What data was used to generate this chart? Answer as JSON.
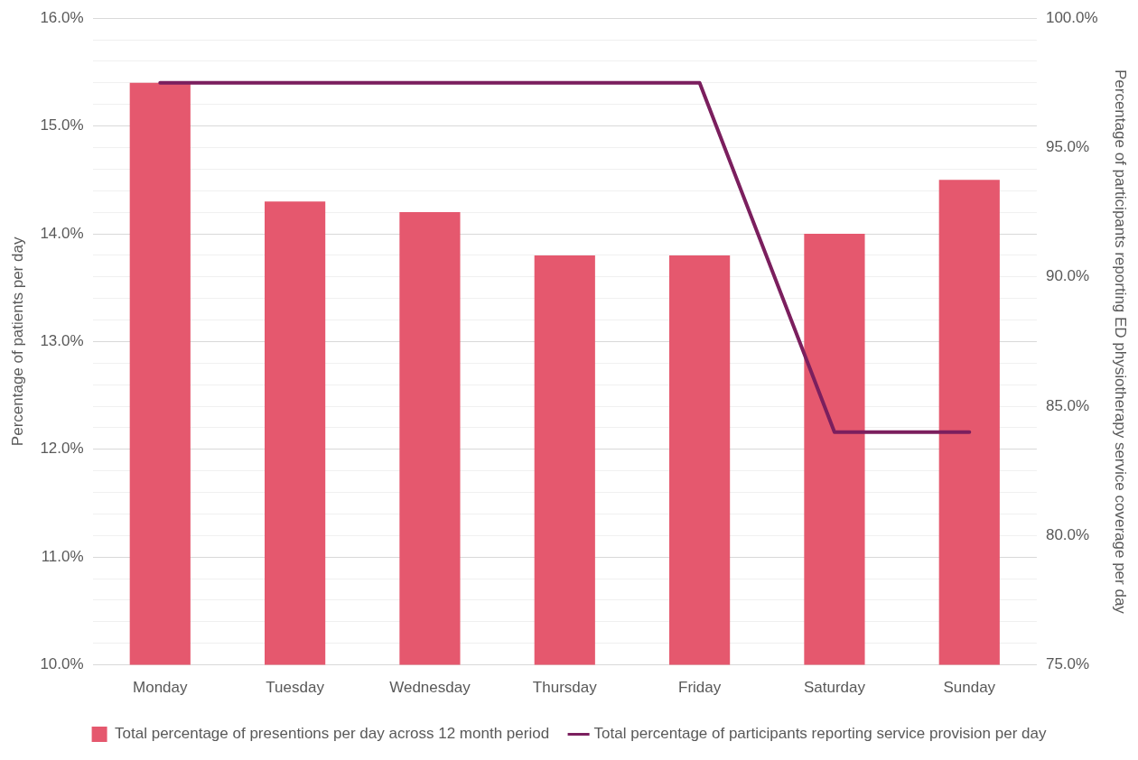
{
  "chart_data": {
    "type": "bar",
    "categories": [
      "Monday",
      "Tuesday",
      "Wednesday",
      "Thursday",
      "Friday",
      "Saturday",
      "Sunday"
    ],
    "ylabel": "Percentage of patients per day",
    "y2label": "Percentage of participants reporting ED physiotherapy service coverage per day",
    "series": [
      {
        "name": "Total percentage of presentions per day across 12 month period",
        "color": "#e5586e",
        "values": [
          15.4,
          14.3,
          14.2,
          13.8,
          13.8,
          14.0,
          14.5
        ]
      },
      {
        "name": "Total percentage of participants reporting service provision per day",
        "type": "line",
        "axis": "y2",
        "color": "#7b1f5e",
        "marker": "none",
        "values": [
          97.5,
          97.5,
          97.5,
          97.5,
          97.5,
          84.0,
          84.0
        ]
      }
    ],
    "ylim": [
      10,
      16
    ],
    "yticks": [
      {
        "value": 10,
        "label": "10.0%"
      },
      {
        "value": 10.2,
        "label": null
      },
      {
        "value": 10.4,
        "label": null
      },
      {
        "value": 10.6,
        "label": null
      },
      {
        "value": 10.8,
        "label": null
      },
      {
        "value": 11,
        "label": "11.0%"
      },
      {
        "value": 11.2,
        "label": null
      },
      {
        "value": 11.4,
        "label": null
      },
      {
        "value": 11.6,
        "label": null
      },
      {
        "value": 11.8,
        "label": null
      },
      {
        "value": 12,
        "label": "12.0%"
      },
      {
        "value": 12.2,
        "label": null
      },
      {
        "value": 12.4,
        "label": null
      },
      {
        "value": 12.6,
        "label": null
      },
      {
        "value": 12.8,
        "label": null
      },
      {
        "value": 13,
        "label": "13.0%"
      },
      {
        "value": 13.2,
        "label": null
      },
      {
        "value": 13.4,
        "label": null
      },
      {
        "value": 13.6,
        "label": null
      },
      {
        "value": 13.8,
        "label": null
      },
      {
        "value": 14,
        "label": "14.0%"
      },
      {
        "value": 14.2,
        "label": null
      },
      {
        "value": 14.4,
        "label": null
      },
      {
        "value": 14.6,
        "label": null
      },
      {
        "value": 14.8,
        "label": null
      },
      {
        "value": 15,
        "label": "15.0%"
      },
      {
        "value": 15.2,
        "label": null
      },
      {
        "value": 15.4,
        "label": null
      },
      {
        "value": 15.6,
        "label": null
      },
      {
        "value": 15.8,
        "label": null
      },
      {
        "value": 16,
        "label": "16.0%"
      }
    ],
    "y2lim": [
      75,
      100
    ],
    "y2ticks": [
      {
        "value": 75,
        "label": "75.0%"
      },
      {
        "value": 80,
        "label": "80.0%"
      },
      {
        "value": 85,
        "label": "85.0%"
      },
      {
        "value": 90,
        "label": "90.0%"
      },
      {
        "value": 95,
        "label": "95.0%"
      },
      {
        "value": 100,
        "label": "100.0%"
      }
    ],
    "grid": "y",
    "legend": "bottom"
  }
}
